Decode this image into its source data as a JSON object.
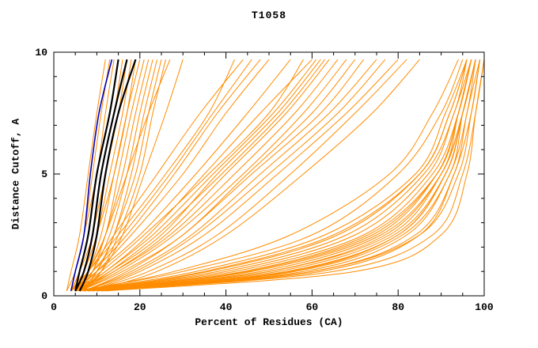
{
  "chart_data": {
    "type": "line",
    "title": "T1058",
    "xlabel": "Percent of Residues (CA)",
    "ylabel": "Distance Cutoff, A",
    "xlim": [
      0,
      100
    ],
    "ylim": [
      0,
      10
    ],
    "x_ticks_major": [
      0,
      20,
      40,
      60,
      80,
      100
    ],
    "x_minor_step": 5,
    "y_ticks_major": [
      0,
      5,
      10
    ],
    "y_minor_step": 1,
    "grid": false,
    "legend": "none",
    "axis_color": "#000000",
    "y_levels": [
      0.2,
      1,
      2.5,
      5,
      7.5,
      9.7
    ],
    "series": [
      {
        "name": "model-curves-orange",
        "color": "#ff8c00",
        "width": 1,
        "curves": [
          [
            3,
            4,
            6,
            8,
            10,
            12
          ],
          [
            3,
            5,
            7,
            9,
            11,
            13
          ],
          [
            4,
            5,
            7,
            10,
            12,
            14
          ],
          [
            4,
            6,
            8,
            10,
            13,
            15
          ],
          [
            4,
            6,
            9,
            11,
            14,
            16
          ],
          [
            5,
            7,
            9,
            12,
            15,
            17
          ],
          [
            5,
            7,
            10,
            13,
            16,
            18
          ],
          [
            4,
            7,
            10,
            14,
            17,
            19
          ],
          [
            5,
            8,
            11,
            14,
            17,
            20
          ],
          [
            5,
            8,
            12,
            15,
            18,
            21
          ],
          [
            6,
            9,
            12,
            16,
            19,
            22
          ],
          [
            6,
            9,
            13,
            17,
            20,
            23
          ],
          [
            6,
            10,
            14,
            18,
            21,
            24
          ],
          [
            7,
            10,
            14,
            19,
            22,
            25
          ],
          [
            7,
            11,
            15,
            20,
            23,
            26
          ],
          [
            5,
            8,
            12,
            17,
            22,
            27
          ],
          [
            6,
            11,
            16,
            21,
            26,
            30
          ],
          [
            4,
            8,
            14,
            24,
            34,
            44
          ],
          [
            5,
            10,
            18,
            30,
            40,
            50
          ],
          [
            5,
            12,
            22,
            35,
            48,
            60
          ],
          [
            6,
            14,
            26,
            40,
            54,
            64
          ],
          [
            4,
            10,
            20,
            33,
            45,
            55
          ],
          [
            6,
            16,
            30,
            45,
            60,
            70
          ],
          [
            5,
            13,
            25,
            38,
            52,
            62
          ],
          [
            7,
            18,
            32,
            48,
            64,
            75
          ],
          [
            6,
            15,
            28,
            44,
            58,
            68
          ],
          [
            5,
            11,
            21,
            36,
            50,
            58
          ],
          [
            8,
            20,
            35,
            52,
            68,
            80
          ],
          [
            4,
            9,
            17,
            28,
            38,
            48
          ],
          [
            7,
            17,
            30,
            46,
            62,
            72
          ],
          [
            5,
            14,
            27,
            42,
            56,
            66
          ],
          [
            6,
            12,
            23,
            37,
            51,
            61
          ],
          [
            8,
            22,
            38,
            55,
            70,
            82
          ],
          [
            4,
            8,
            15,
            26,
            36,
            42
          ],
          [
            9,
            24,
            40,
            58,
            74,
            85
          ],
          [
            5,
            9,
            16,
            27,
            37,
            46
          ],
          [
            7,
            19,
            33,
            50,
            66,
            77
          ],
          [
            6,
            13,
            24,
            39,
            53,
            63
          ],
          [
            5,
            30,
            60,
            80,
            90,
            95
          ],
          [
            6,
            35,
            65,
            85,
            92,
            96
          ],
          [
            5,
            40,
            70,
            87,
            93,
            97
          ],
          [
            7,
            45,
            74,
            89,
            94,
            97
          ],
          [
            6,
            50,
            78,
            90,
            95,
            98
          ],
          [
            8,
            55,
            80,
            91,
            95,
            98
          ],
          [
            5,
            38,
            68,
            86,
            93,
            96
          ],
          [
            7,
            48,
            76,
            90,
            94,
            97
          ],
          [
            6,
            42,
            72,
            88,
            94,
            97
          ],
          [
            9,
            58,
            82,
            92,
            96,
            98
          ],
          [
            5,
            33,
            63,
            84,
            91,
            96
          ],
          [
            8,
            52,
            79,
            91,
            95,
            98
          ],
          [
            10,
            60,
            84,
            93,
            96,
            99
          ],
          [
            6,
            44,
            73,
            89,
            94,
            97
          ],
          [
            7,
            50,
            77,
            90,
            95,
            98
          ],
          [
            5,
            36,
            66,
            85,
            92,
            96
          ],
          [
            9,
            56,
            81,
            92,
            95,
            98
          ],
          [
            11,
            62,
            85,
            93,
            97,
            99
          ],
          [
            6,
            46,
            75,
            89,
            94,
            97
          ],
          [
            8,
            54,
            80,
            91,
            95,
            98
          ],
          [
            10,
            65,
            88,
            95,
            98,
            100
          ],
          [
            12,
            70,
            90,
            96,
            98,
            100
          ],
          [
            8,
            60,
            85,
            94,
            97,
            99
          ],
          [
            6,
            28,
            55,
            78,
            88,
            94
          ]
        ]
      },
      {
        "name": "model-curves-black",
        "color": "#000000",
        "width": 2.2,
        "curves": [
          [
            5,
            6,
            8,
            10,
            13,
            15
          ],
          [
            5,
            7,
            9,
            11,
            14,
            17
          ],
          [
            6,
            8,
            10,
            12,
            15,
            19
          ]
        ]
      },
      {
        "name": "model-curve-blue",
        "color": "#0000bb",
        "width": 1.6,
        "curves": [
          [
            4,
            5,
            7,
            8.5,
            10.5,
            13.5
          ]
        ]
      }
    ]
  }
}
